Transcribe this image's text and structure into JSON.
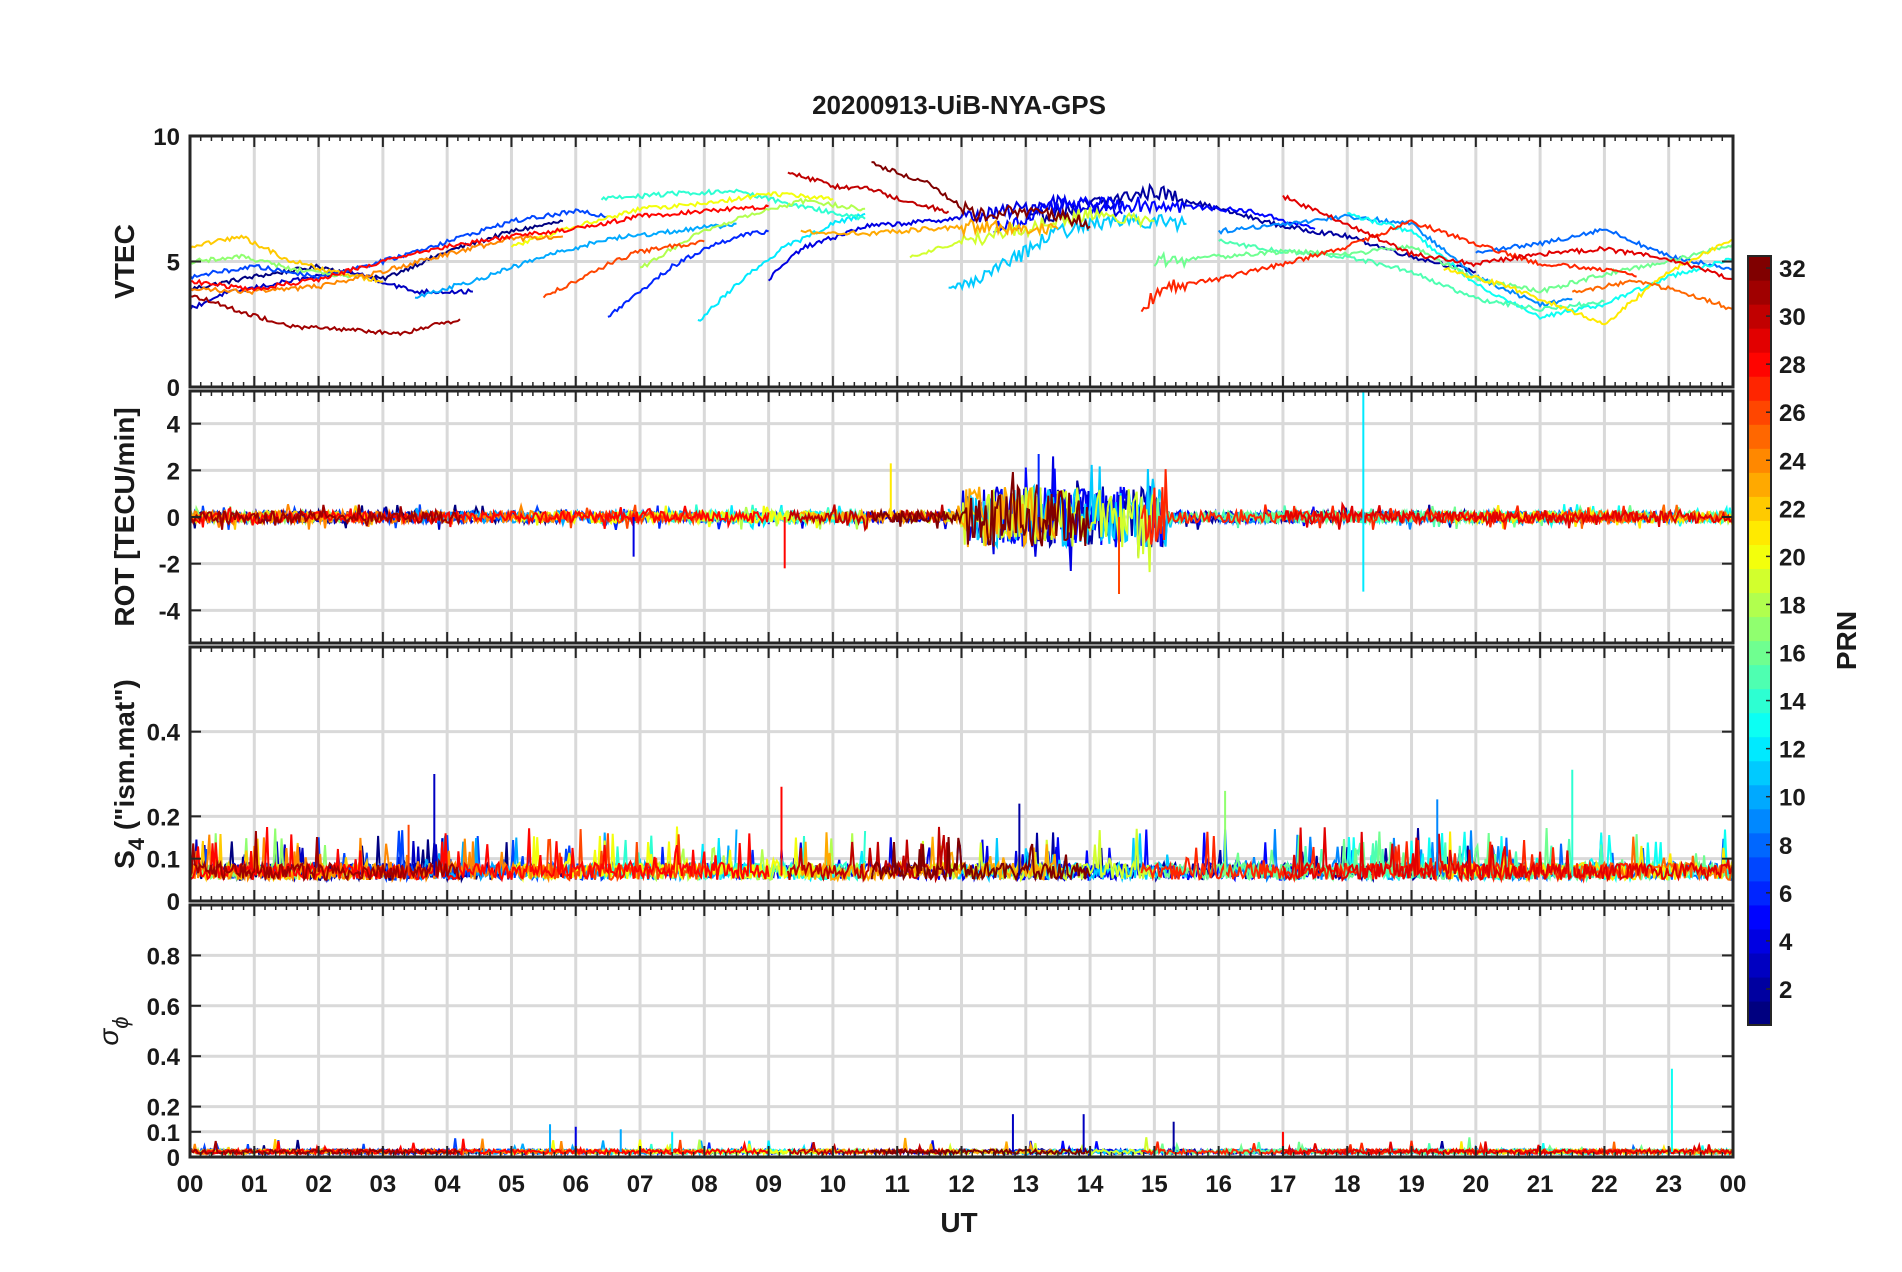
{
  "chart_data": {
    "title": "20200913-UiB-NYA-GPS",
    "type": "line",
    "xlabel": "UT",
    "x_tick_labels": [
      "00",
      "01",
      "02",
      "03",
      "04",
      "05",
      "06",
      "07",
      "08",
      "09",
      "10",
      "11",
      "12",
      "13",
      "14",
      "15",
      "16",
      "17",
      "18",
      "19",
      "20",
      "21",
      "22",
      "23",
      "00"
    ],
    "x_range_hours": [
      0,
      24
    ],
    "panels": [
      {
        "id": "vtec",
        "ylabel": "VTEC",
        "ylim": [
          0,
          10
        ],
        "yticks": [
          0,
          5,
          10
        ],
        "ytick_labels": [
          "0",
          "5",
          "10"
        ]
      },
      {
        "id": "rot",
        "ylabel": "ROT [TECU/min]",
        "ylim": [
          -5.4,
          5.4
        ],
        "yticks": [
          -4,
          -2,
          0,
          2,
          4
        ],
        "ytick_labels": [
          "-4",
          "-2",
          "0",
          "2",
          "4"
        ]
      },
      {
        "id": "s4",
        "ylabel_main": "S",
        "ylabel_sub": "4",
        "ylabel_rest": " (\"ism.mat\")",
        "ylim": [
          0,
          0.6
        ],
        "yticks": [
          0,
          0.1,
          0.2,
          0.4
        ],
        "ytick_labels": [
          "0",
          "0.1",
          "0.2",
          "0.4"
        ]
      },
      {
        "id": "sigphi",
        "ylabel_main": "σ",
        "ylabel_sub": "ϕ",
        "ylim": [
          0,
          1
        ],
        "yticks": [
          0,
          0.1,
          0.2,
          0.4,
          0.6,
          0.8
        ],
        "ytick_labels": [
          "0",
          "0.1",
          "0.2",
          "0.4",
          "0.6",
          "0.8"
        ]
      }
    ],
    "colorbar": {
      "label": "PRN",
      "range": [
        1,
        32
      ],
      "ticks": [
        2,
        4,
        6,
        8,
        10,
        12,
        14,
        16,
        18,
        20,
        22,
        24,
        26,
        28,
        30,
        32
      ],
      "tick_labels": [
        "2",
        "4",
        "6",
        "8",
        "10",
        "12",
        "14",
        "16",
        "18",
        "20",
        "22",
        "24",
        "26",
        "28",
        "30",
        "32"
      ],
      "colormap": "jet"
    },
    "series": [
      {
        "prn": 1,
        "vtec": [
          [
            0,
            3.9
          ],
          [
            1,
            4.4
          ],
          [
            2,
            4.8
          ],
          [
            3,
            4.3
          ],
          [
            4,
            5.4
          ],
          [
            5,
            6.2
          ],
          [
            5.8,
            6.6
          ]
        ]
      },
      {
        "prn": 2,
        "vtec": [
          [
            13,
            6.6
          ],
          [
            14,
            7.3
          ],
          [
            15,
            7.8
          ],
          [
            16,
            7.1
          ],
          [
            17,
            6.4
          ],
          [
            18,
            6.0
          ],
          [
            19,
            5.2
          ],
          [
            20,
            4.6
          ]
        ]
      },
      {
        "prn": 3,
        "vtec": [
          [
            0,
            3.1
          ],
          [
            0.5,
            3.7
          ],
          [
            1.5,
            4.2
          ],
          [
            2.5,
            4.6
          ],
          [
            3.5,
            3.8
          ],
          [
            4.4,
            3.8
          ]
        ]
      },
      {
        "prn": 4,
        "vtec": [
          [
            9,
            4.3
          ],
          [
            9.5,
            5.5
          ],
          [
            10.5,
            6.4
          ],
          [
            11.5,
            6.6
          ],
          [
            12.5,
            6.9
          ],
          [
            13.5,
            7.4
          ],
          [
            14.5,
            6.9
          ]
        ]
      },
      {
        "prn": 5,
        "vtec": [
          [
            12.5,
            6.3
          ],
          [
            13.5,
            7.2
          ],
          [
            14.5,
            7.3
          ],
          [
            15.5,
            7.2
          ],
          [
            16.5,
            7.0
          ],
          [
            17.5,
            6.3
          ]
        ]
      },
      {
        "prn": 6,
        "vtec": [
          [
            6.5,
            2.8
          ],
          [
            7,
            3.8
          ],
          [
            7.5,
            4.8
          ],
          [
            8,
            5.5
          ],
          [
            8.5,
            6.0
          ],
          [
            9,
            6.2
          ]
        ]
      },
      {
        "prn": 7,
        "vtec": [
          [
            0,
            4.4
          ],
          [
            1,
            4.8
          ],
          [
            2,
            4.4
          ],
          [
            3,
            5.0
          ],
          [
            4,
            5.8
          ],
          [
            5,
            6.6
          ],
          [
            6,
            7.0
          ],
          [
            6.5,
            6.8
          ]
        ]
      },
      {
        "prn": 8,
        "vtec": [
          [
            20,
            5.4
          ],
          [
            21,
            5.7
          ],
          [
            22,
            6.3
          ],
          [
            23,
            5.2
          ],
          [
            24,
            4.7
          ]
        ]
      },
      {
        "prn": 9,
        "vtec": [
          [
            16,
            6.2
          ],
          [
            17,
            6.5
          ],
          [
            18,
            6.8
          ],
          [
            19,
            6.5
          ],
          [
            20,
            4.4
          ],
          [
            21,
            3.3
          ],
          [
            21.5,
            3.5
          ]
        ]
      },
      {
        "prn": 10,
        "vtec": [
          [
            3.5,
            3.6
          ],
          [
            4.5,
            4.3
          ],
          [
            5.5,
            5.2
          ],
          [
            6.5,
            5.9
          ],
          [
            7.5,
            6.2
          ],
          [
            8.5,
            6.5
          ]
        ]
      },
      {
        "prn": 11,
        "vtec": [
          [
            11.8,
            3.9
          ],
          [
            12.5,
            4.6
          ],
          [
            13.5,
            6.2
          ],
          [
            14.5,
            6.7
          ],
          [
            15.5,
            6.5
          ]
        ]
      },
      {
        "prn": 12,
        "vtec": [
          [
            7.9,
            2.6
          ],
          [
            8.5,
            4.1
          ],
          [
            9.2,
            5.5
          ],
          [
            10,
            6.5
          ],
          [
            10.5,
            6.9
          ]
        ]
      },
      {
        "prn": 13,
        "vtec": [
          [
            18,
            6.9
          ],
          [
            19,
            6.2
          ],
          [
            20,
            4.1
          ],
          [
            21,
            2.8
          ],
          [
            22,
            3.3
          ],
          [
            23,
            4.4
          ],
          [
            24,
            5.1
          ]
        ]
      },
      {
        "prn": 14,
        "vtec": [
          [
            6.4,
            7.5
          ],
          [
            7.5,
            7.7
          ],
          [
            8.5,
            7.8
          ],
          [
            9.5,
            7.2
          ],
          [
            10.5,
            6.7
          ]
        ]
      },
      {
        "prn": 15,
        "vtec": [
          [
            16,
            5.8
          ],
          [
            17,
            5.4
          ],
          [
            18,
            5.2
          ],
          [
            19,
            4.6
          ],
          [
            20,
            3.5
          ],
          [
            21,
            3.1
          ],
          [
            22,
            3.4
          ]
        ]
      },
      {
        "prn": 16,
        "vtec": [
          [
            15,
            5.0
          ],
          [
            16,
            5.2
          ],
          [
            17,
            5.4
          ],
          [
            18,
            5.3
          ],
          [
            19,
            5.6
          ],
          [
            20,
            4.3
          ],
          [
            21,
            3.8
          ],
          [
            22,
            4.5
          ],
          [
            23,
            5.0
          ],
          [
            24,
            5.7
          ]
        ]
      },
      {
        "prn": 17,
        "vtec": [
          [
            0,
            5.0
          ],
          [
            0.8,
            5.2
          ],
          [
            1.6,
            4.7
          ],
          [
            2.5,
            4.4
          ]
        ]
      },
      {
        "prn": 18,
        "vtec": [
          [
            7,
            4.7
          ],
          [
            7.8,
            6.0
          ],
          [
            8.6,
            6.8
          ],
          [
            9.5,
            7.4
          ],
          [
            10.5,
            7.1
          ]
        ]
      },
      {
        "prn": 19,
        "vtec": [
          [
            11.2,
            5.2
          ],
          [
            12,
            5.8
          ],
          [
            13,
            6.3
          ],
          [
            14,
            6.9
          ],
          [
            15,
            6.6
          ]
        ]
      },
      {
        "prn": 20,
        "vtec": [
          [
            5,
            5.6
          ],
          [
            6,
            6.4
          ],
          [
            7,
            7.1
          ],
          [
            8,
            7.3
          ],
          [
            9,
            7.7
          ],
          [
            10,
            7.5
          ]
        ]
      },
      {
        "prn": 21,
        "vtec": [
          [
            19.5,
            4.7
          ],
          [
            20.5,
            4.0
          ],
          [
            21.5,
            3.0
          ],
          [
            22,
            2.5
          ],
          [
            23,
            4.6
          ],
          [
            24,
            5.9
          ]
        ]
      },
      {
        "prn": 22,
        "vtec": [
          [
            0,
            5.6
          ],
          [
            0.8,
            6.0
          ],
          [
            1.5,
            5.1
          ],
          [
            2.2,
            4.6
          ],
          [
            3,
            4.2
          ]
        ]
      },
      {
        "prn": 23,
        "vtec": [
          [
            9.5,
            6.2
          ],
          [
            10.5,
            6.1
          ],
          [
            11.5,
            6.3
          ],
          [
            12.5,
            6.4
          ],
          [
            13.5,
            6.3
          ]
        ]
      },
      {
        "prn": 24,
        "vtec": [
          [
            0,
            3.9
          ],
          [
            1,
            3.8
          ],
          [
            2,
            4.0
          ],
          [
            3,
            4.6
          ],
          [
            4,
            5.3
          ],
          [
            5,
            5.9
          ],
          [
            5.8,
            6.0
          ]
        ]
      },
      {
        "prn": 25,
        "vtec": [
          [
            21.5,
            3.8
          ],
          [
            22.5,
            4.2
          ],
          [
            23.2,
            3.8
          ],
          [
            24,
            3.1
          ]
        ]
      },
      {
        "prn": 26,
        "vtec": [
          [
            5.5,
            3.6
          ],
          [
            6,
            4.2
          ],
          [
            6.5,
            4.9
          ],
          [
            7,
            5.4
          ],
          [
            7.5,
            5.6
          ],
          [
            8,
            5.8
          ]
        ]
      },
      {
        "prn": 27,
        "vtec": [
          [
            14.8,
            3.3
          ],
          [
            15.3,
            4.0
          ],
          [
            16,
            4.3
          ],
          [
            17,
            4.9
          ],
          [
            18,
            5.6
          ],
          [
            19,
            6.6
          ],
          [
            20,
            5.7
          ],
          [
            21,
            4.9
          ],
          [
            22,
            4.7
          ],
          [
            22.5,
            4.4
          ]
        ]
      },
      {
        "prn": 28,
        "vtec": [
          [
            0,
            4.2
          ],
          [
            1,
            3.9
          ],
          [
            2,
            4.3
          ],
          [
            3,
            5.0
          ],
          [
            4,
            5.6
          ],
          [
            5,
            6.0
          ],
          [
            6,
            6.3
          ],
          [
            7,
            6.8
          ],
          [
            8,
            7.0
          ],
          [
            9,
            7.2
          ]
        ]
      },
      {
        "prn": 29,
        "vtec": [
          [
            17,
            7.6
          ],
          [
            18,
            6.5
          ],
          [
            19,
            5.3
          ],
          [
            20,
            4.9
          ],
          [
            21,
            5.3
          ],
          [
            22,
            5.5
          ],
          [
            23,
            5.1
          ],
          [
            24,
            4.3
          ]
        ]
      },
      {
        "prn": 30,
        "vtec": [
          [
            9.3,
            8.6
          ],
          [
            10,
            8.0
          ],
          [
            10.6,
            7.9
          ],
          [
            11.1,
            7.4
          ],
          [
            11.8,
            7.0
          ]
        ]
      },
      {
        "prn": 31,
        "vtec": [
          [
            0,
            3.7
          ],
          [
            0.8,
            3.0
          ],
          [
            1.6,
            2.4
          ],
          [
            2.5,
            2.3
          ],
          [
            3.2,
            2.1
          ],
          [
            4.2,
            2.7
          ]
        ]
      },
      {
        "prn": 32,
        "vtec": [
          [
            10.6,
            8.9
          ],
          [
            11.5,
            8.1
          ],
          [
            12.2,
            6.8
          ],
          [
            12.8,
            7.0
          ],
          [
            13.4,
            7.0
          ],
          [
            14,
            6.4
          ]
        ]
      }
    ]
  }
}
